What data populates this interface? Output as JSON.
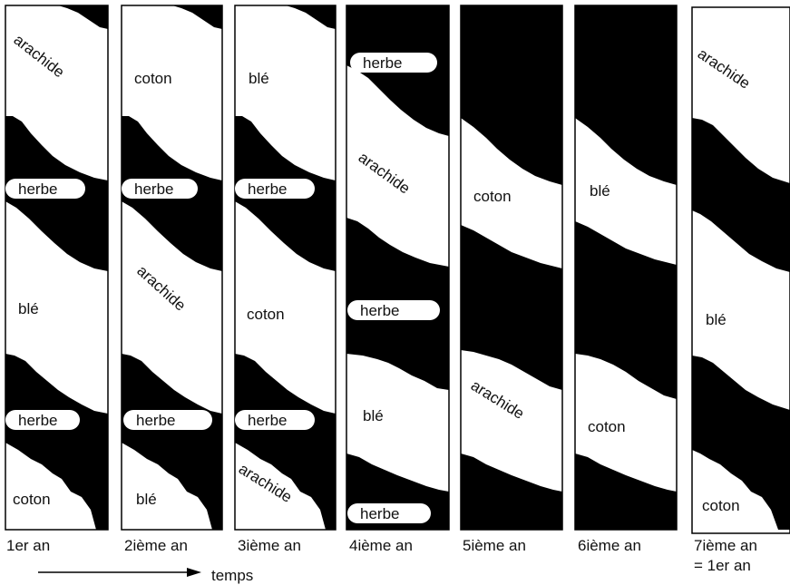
{
  "strips": [
    {
      "year_label": "1er an",
      "labels": [
        {
          "text": "arachide",
          "role": "crop"
        },
        {
          "text": "herbe",
          "role": "pill"
        },
        {
          "text": "blé",
          "role": "crop"
        },
        {
          "text": "herbe",
          "role": "pill"
        },
        {
          "text": "coton",
          "role": "crop"
        }
      ]
    },
    {
      "year_label": "2ième an",
      "labels": [
        {
          "text": "coton",
          "role": "crop"
        },
        {
          "text": "herbe",
          "role": "pill"
        },
        {
          "text": "arachide",
          "role": "crop"
        },
        {
          "text": "herbe",
          "role": "pill"
        },
        {
          "text": "blé",
          "role": "crop"
        }
      ]
    },
    {
      "year_label": "3ième an",
      "labels": [
        {
          "text": "blé",
          "role": "crop"
        },
        {
          "text": "herbe",
          "role": "pill"
        },
        {
          "text": "coton",
          "role": "crop"
        },
        {
          "text": "herbe",
          "role": "pill"
        },
        {
          "text": "arachide",
          "role": "crop"
        }
      ]
    },
    {
      "year_label": "4ième an",
      "labels": [
        {
          "text": "herbe",
          "role": "pill"
        },
        {
          "text": "arachide",
          "role": "crop"
        },
        {
          "text": "herbe",
          "role": "pill"
        },
        {
          "text": "blé",
          "role": "crop"
        },
        {
          "text": "herbe",
          "role": "pill"
        }
      ]
    },
    {
      "year_label": "5ième an",
      "labels": [
        {
          "text": "coton",
          "role": "crop"
        },
        {
          "text": "arachide",
          "role": "crop"
        }
      ]
    },
    {
      "year_label": "6ième an",
      "labels": [
        {
          "text": "blé",
          "role": "crop"
        },
        {
          "text": "coton",
          "role": "crop"
        }
      ]
    },
    {
      "year_label": "7ième an",
      "year_sublabel": "= 1er an",
      "labels": [
        {
          "text": "arachide",
          "role": "crop"
        },
        {
          "text": "blé",
          "role": "crop"
        },
        {
          "text": "coton",
          "role": "crop"
        }
      ]
    }
  ],
  "time_label": "temps",
  "colors": {
    "ink": "#000000",
    "paper": "#ffffff"
  }
}
